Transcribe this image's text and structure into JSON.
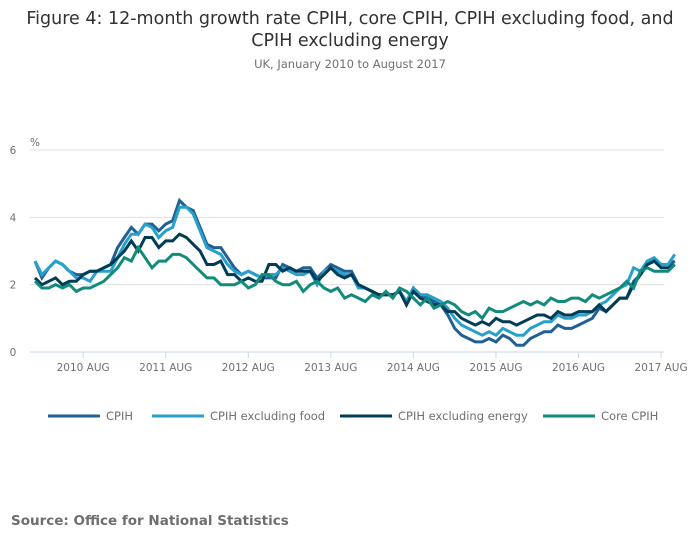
{
  "title": "Figure 4: 12-month growth rate CPIH, core CPIH, CPIH excluding food, and CPIH excluding energy",
  "title_line1": "Figure 4: 12-month growth rate CPIH, core CPIH, CPIH excluding food, and",
  "title_line2": "CPIH excluding energy",
  "subtitle": "UK, January 2010 to August 2017",
  "source": "Source: Office for National Statistics",
  "chart_data": {
    "type": "line",
    "title": "Figure 4: 12-month growth rate CPIH, core CPIH, CPIH excluding food, and CPIH excluding energy",
    "subtitle": "UK, January 2010 to August 2017",
    "xlabel": "",
    "ylabel": "%",
    "ylim": [
      0,
      6
    ],
    "yticks": [
      0,
      2,
      4,
      6
    ],
    "x_start": "2010-01",
    "x_end": "2017-08",
    "xticks": [
      "2010 AUG",
      "2011 AUG",
      "2012 AUG",
      "2013 AUG",
      "2014 AUG",
      "2015 AUG",
      "2016 AUG",
      "2017 AUG"
    ],
    "xtick_month_index": [
      7,
      19,
      31,
      43,
      55,
      67,
      79,
      91
    ],
    "grid": true,
    "legend_position": "bottom",
    "series": [
      {
        "name": "CPIH",
        "color": "#206095",
        "values": [
          2.7,
          2.2,
          2.5,
          2.7,
          2.6,
          2.4,
          2.3,
          2.3,
          2.4,
          2.4,
          2.5,
          2.6,
          3.1,
          3.4,
          3.7,
          3.5,
          3.8,
          3.8,
          3.6,
          3.8,
          3.9,
          4.5,
          4.3,
          4.2,
          3.7,
          3.2,
          3.1,
          3.1,
          2.8,
          2.5,
          2.3,
          2.4,
          2.3,
          2.2,
          2.2,
          2.2,
          2.6,
          2.5,
          2.4,
          2.5,
          2.5,
          2.2,
          2.4,
          2.6,
          2.5,
          2.4,
          2.4,
          2.0,
          1.9,
          1.8,
          1.7,
          1.7,
          1.7,
          1.8,
          1.5,
          1.9,
          1.7,
          1.6,
          1.5,
          1.4,
          1.1,
          0.7,
          0.5,
          0.4,
          0.3,
          0.3,
          0.4,
          0.3,
          0.5,
          0.4,
          0.2,
          0.2,
          0.4,
          0.5,
          0.6,
          0.6,
          0.8,
          0.7,
          0.7,
          0.8,
          0.9,
          1.0,
          1.3,
          1.2,
          1.4,
          1.6,
          1.6,
          2.1,
          2.3,
          2.6,
          2.7,
          2.6,
          2.6,
          2.7
        ]
      },
      {
        "name": "CPIH excluding food",
        "color": "#27a0cc",
        "values": [
          2.7,
          2.3,
          2.5,
          2.7,
          2.6,
          2.4,
          2.2,
          2.2,
          2.1,
          2.4,
          2.4,
          2.4,
          2.8,
          3.2,
          3.5,
          3.5,
          3.8,
          3.7,
          3.4,
          3.6,
          3.7,
          4.3,
          4.3,
          4.1,
          3.6,
          3.1,
          3.0,
          2.9,
          2.6,
          2.4,
          2.3,
          2.4,
          2.3,
          2.2,
          2.3,
          2.3,
          2.5,
          2.4,
          2.3,
          2.3,
          2.4,
          2.0,
          2.4,
          2.5,
          2.4,
          2.3,
          2.3,
          1.9,
          1.9,
          1.8,
          1.7,
          1.7,
          1.7,
          1.8,
          1.5,
          1.9,
          1.7,
          1.7,
          1.6,
          1.5,
          1.3,
          1.0,
          0.8,
          0.7,
          0.6,
          0.5,
          0.6,
          0.5,
          0.7,
          0.6,
          0.5,
          0.5,
          0.7,
          0.8,
          0.9,
          0.9,
          1.1,
          1.0,
          1.0,
          1.1,
          1.1,
          1.2,
          1.4,
          1.5,
          1.7,
          1.9,
          2.0,
          2.5,
          2.4,
          2.7,
          2.8,
          2.6,
          2.6,
          2.9
        ]
      },
      {
        "name": "CPIH excluding energy",
        "color": "#003c57",
        "values": [
          2.2,
          2.0,
          2.1,
          2.2,
          2.0,
          2.1,
          2.1,
          2.3,
          2.4,
          2.4,
          2.5,
          2.6,
          2.8,
          3.0,
          3.3,
          3.0,
          3.4,
          3.4,
          3.1,
          3.3,
          3.3,
          3.5,
          3.4,
          3.2,
          3.0,
          2.6,
          2.6,
          2.7,
          2.3,
          2.3,
          2.1,
          2.2,
          2.1,
          2.1,
          2.6,
          2.6,
          2.4,
          2.5,
          2.4,
          2.4,
          2.4,
          2.1,
          2.3,
          2.5,
          2.3,
          2.2,
          2.3,
          2.0,
          1.9,
          1.8,
          1.7,
          1.7,
          1.7,
          1.8,
          1.4,
          1.8,
          1.6,
          1.5,
          1.4,
          1.4,
          1.2,
          1.2,
          1.0,
          0.9,
          0.8,
          0.9,
          0.8,
          1.0,
          0.9,
          0.9,
          0.8,
          0.9,
          1.0,
          1.1,
          1.1,
          1.0,
          1.2,
          1.1,
          1.1,
          1.2,
          1.2,
          1.2,
          1.4,
          1.2,
          1.4,
          1.6,
          1.6,
          2.0,
          2.3,
          2.6,
          2.7,
          2.5,
          2.5,
          2.6
        ]
      },
      {
        "name": "Core CPIH",
        "color": "#118c7b",
        "values": [
          2.1,
          1.9,
          1.9,
          2.0,
          1.9,
          2.0,
          1.8,
          1.9,
          1.9,
          2.0,
          2.1,
          2.3,
          2.5,
          2.8,
          2.7,
          3.1,
          2.8,
          2.5,
          2.7,
          2.7,
          2.9,
          2.9,
          2.8,
          2.6,
          2.4,
          2.2,
          2.2,
          2.0,
          2.0,
          2.0,
          2.1,
          1.9,
          2.0,
          2.3,
          2.3,
          2.1,
          2.0,
          2.0,
          2.1,
          1.8,
          2.0,
          2.1,
          1.9,
          1.8,
          1.9,
          1.6,
          1.7,
          1.6,
          1.5,
          1.7,
          1.6,
          1.8,
          1.6,
          1.9,
          1.8,
          1.6,
          1.4,
          1.6,
          1.3,
          1.4,
          1.5,
          1.4,
          1.2,
          1.1,
          1.2,
          1.0,
          1.3,
          1.2,
          1.2,
          1.3,
          1.4,
          1.5,
          1.4,
          1.5,
          1.4,
          1.6,
          1.5,
          1.5,
          1.6,
          1.6,
          1.5,
          1.7,
          1.6,
          1.7,
          1.8,
          1.9,
          2.1,
          1.9,
          2.4,
          2.5,
          2.4,
          2.4,
          2.4,
          2.6
        ]
      }
    ]
  }
}
